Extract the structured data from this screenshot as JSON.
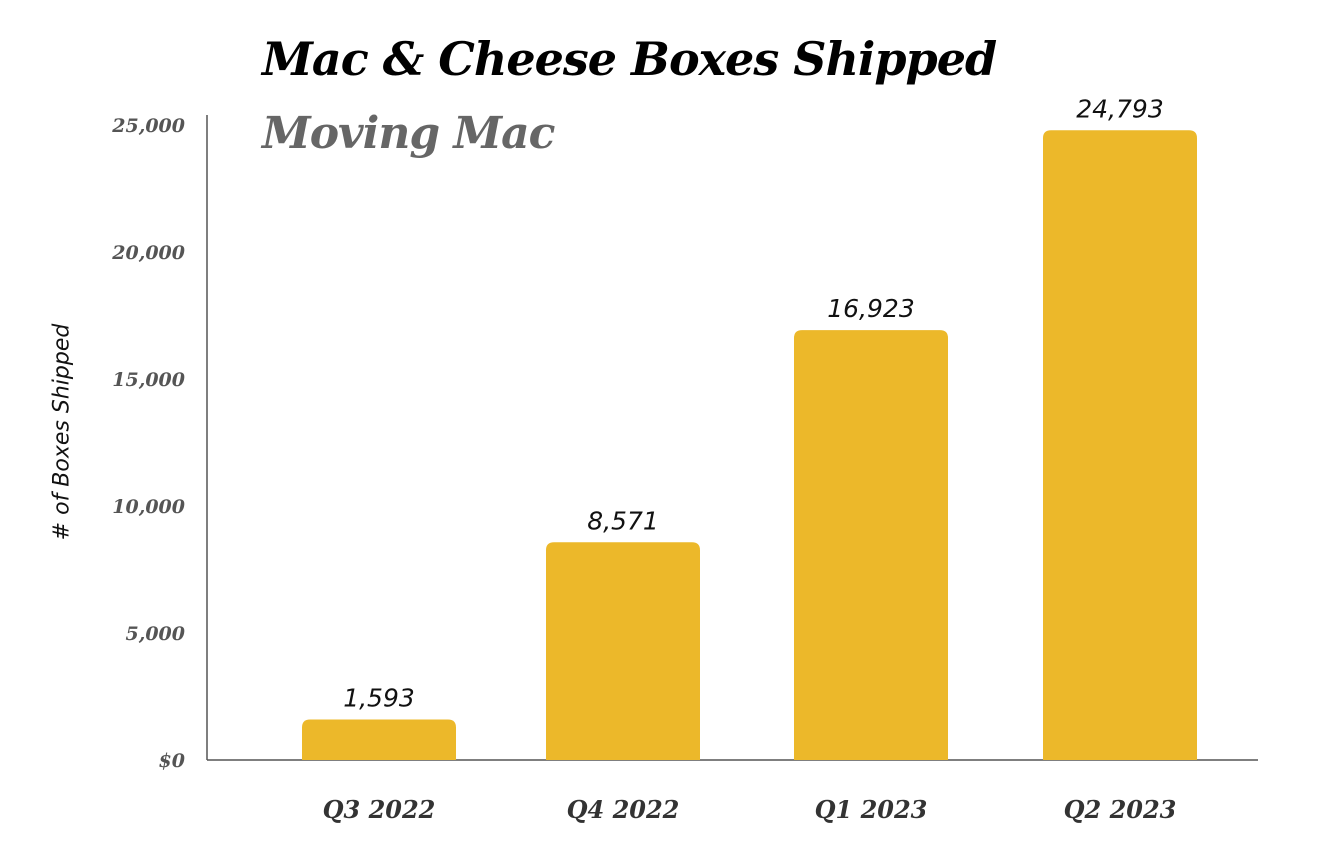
{
  "chart_data": {
    "type": "bar",
    "title": "Mac & Cheese Boxes Shipped",
    "subtitle": "Moving Mac",
    "xlabel": "",
    "ylabel": "# of Boxes Shipped",
    "categories": [
      "Q3 2022",
      "Q4 2022",
      "Q1 2023",
      "Q2 2023"
    ],
    "values": [
      1593,
      8571,
      16923,
      24793
    ],
    "value_labels": [
      "1,593",
      "8,571",
      "16,923",
      "24,793"
    ],
    "ylim": [
      0,
      25000
    ],
    "yticks": [
      0,
      5000,
      10000,
      15000,
      20000,
      25000
    ],
    "ytick_labels": [
      "$0",
      "5,000",
      "10,000",
      "15,000",
      "20,000",
      "25,000"
    ],
    "grid": false,
    "legend": "none"
  },
  "colors": {
    "bar": "#ECB82A",
    "title": "#000000",
    "subtitle": "#666666",
    "axis": "#555555",
    "tick_label": "#555555",
    "x_tick_label": "#333333",
    "data_label": "#111111"
  }
}
